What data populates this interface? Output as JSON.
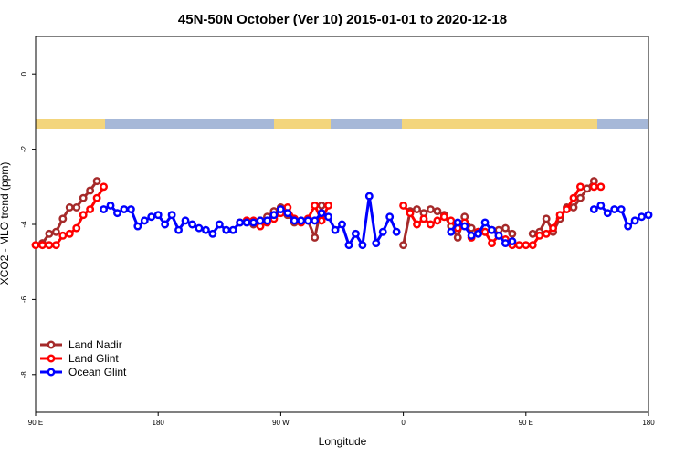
{
  "chart_data": {
    "type": "line",
    "title": "45N-50N October (Ver 10)   2015-01-01 to 2020-12-18",
    "x_label": "Longitude",
    "y_label": "XCO2 - MLO trend (ppm)",
    "xlim": [
      90,
      540
    ],
    "ylim": [
      -9,
      1
    ],
    "xticks": [
      {
        "value": 90,
        "label": "90 E"
      },
      180,
      {
        "value": 270,
        "label": "90 W"
      },
      {
        "value": 360,
        "label": "0"
      },
      {
        "value": 450,
        "label": "90 E"
      },
      {
        "value": 540,
        "label": "180"
      }
    ],
    "yticks": [
      0,
      -2,
      -4,
      -6,
      -8
    ],
    "legend": "bottom-left",
    "series": [
      {
        "name": "Land Nadir",
        "color": "#a52a2a",
        "x": [
          95,
          100,
          105,
          110,
          115,
          120,
          125,
          130,
          135,
          200,
          240,
          245,
          250,
          255,
          260,
          265,
          270,
          275,
          280,
          285,
          290,
          295,
          300,
          330,
          360,
          365,
          370,
          375,
          380,
          385,
          390,
          395,
          400,
          405,
          410,
          415,
          420,
          425,
          430,
          435,
          440,
          450,
          455,
          460,
          465,
          470,
          475,
          480,
          485,
          490,
          495,
          500
        ],
        "values": [
          -4.5,
          -4.25,
          -4.2,
          -3.85,
          -3.55,
          -3.55,
          -3.3,
          -3.1,
          -2.85,
          null,
          -3.95,
          -3.9,
          -4.0,
          -3.9,
          -3.8,
          -3.65,
          -3.55,
          -3.75,
          -3.95,
          -3.9,
          -3.9,
          -4.35,
          -3.5,
          null,
          -4.55,
          -3.65,
          -3.6,
          -3.7,
          -3.6,
          -3.65,
          -3.75,
          -4.05,
          -4.35,
          -3.8,
          -4.1,
          -4.2,
          -4.2,
          -4.15,
          -4.15,
          -4.1,
          -4.25,
          null,
          -4.25,
          -4.2,
          -3.85,
          -4.2,
          -3.85,
          -3.55,
          -3.55,
          -3.3,
          -3.05,
          -2.85
        ]
      },
      {
        "name": "Land Glint",
        "color": "#ff0000",
        "x": [
          90,
          95,
          100,
          105,
          110,
          115,
          120,
          125,
          130,
          135,
          140,
          200,
          245,
          250,
          255,
          260,
          265,
          270,
          275,
          280,
          285,
          290,
          295,
          300,
          305,
          330,
          360,
          365,
          370,
          375,
          380,
          385,
          390,
          395,
          400,
          405,
          410,
          415,
          420,
          425,
          430,
          435,
          440,
          445,
          450,
          455,
          460,
          465,
          470,
          475,
          480,
          485,
          490,
          495,
          500,
          505
        ],
        "values": [
          -4.55,
          -4.55,
          -4.55,
          -4.55,
          -4.3,
          -4.25,
          -4.1,
          -3.75,
          -3.6,
          -3.3,
          -3.0,
          null,
          -3.9,
          -3.9,
          -4.05,
          -3.95,
          -3.85,
          -3.7,
          -3.55,
          -3.85,
          -3.95,
          -3.85,
          -3.5,
          -3.9,
          -3.5,
          null,
          -3.5,
          -3.7,
          -4.0,
          -3.85,
          -4.0,
          -3.9,
          -3.8,
          -3.9,
          -4.1,
          -3.95,
          -4.35,
          -4.2,
          -4.2,
          -4.5,
          -4.3,
          -4.4,
          -4.55,
          -4.55,
          -4.55,
          -4.55,
          -4.3,
          -4.25,
          -4.1,
          -3.75,
          -3.6,
          -3.3,
          -3.0,
          null,
          -3.0,
          -3.0
        ]
      },
      {
        "name": "Ocean Glint",
        "color": "#0000ff",
        "x": [
          140,
          145,
          150,
          155,
          160,
          165,
          170,
          175,
          180,
          185,
          190,
          195,
          200,
          205,
          210,
          215,
          220,
          225,
          230,
          235,
          240,
          245,
          250,
          255,
          260,
          265,
          270,
          275,
          280,
          285,
          290,
          295,
          300,
          305,
          310,
          315,
          320,
          325,
          330,
          335,
          340,
          345,
          350,
          355,
          375,
          395,
          400,
          405,
          410,
          415,
          420,
          425,
          430,
          435,
          440,
          470,
          500,
          505,
          510,
          515,
          520,
          525,
          530,
          535,
          540
        ],
        "values": [
          -3.6,
          -3.5,
          -3.7,
          -3.6,
          -3.6,
          -4.05,
          -3.9,
          -3.8,
          -3.75,
          -4.0,
          -3.75,
          -4.15,
          -3.9,
          -4.0,
          -4.1,
          -4.15,
          -4.25,
          -4.0,
          -4.15,
          -4.15,
          -3.95,
          -3.95,
          -3.95,
          -3.9,
          -3.9,
          -3.75,
          -3.6,
          -3.7,
          -3.9,
          -3.9,
          -3.9,
          -3.9,
          -3.7,
          -3.8,
          -4.15,
          -4.0,
          -4.55,
          -4.25,
          -4.55,
          -3.25,
          -4.5,
          -4.2,
          -3.8,
          -4.2,
          null,
          -4.2,
          -3.95,
          -4.05,
          -4.3,
          -4.25,
          -3.95,
          -4.15,
          -4.3,
          -4.5,
          -4.45,
          null,
          -3.6,
          -3.5,
          -3.7,
          -3.6,
          -3.6,
          -4.05,
          -3.9,
          -3.8,
          -3.75
        ]
      }
    ]
  }
}
